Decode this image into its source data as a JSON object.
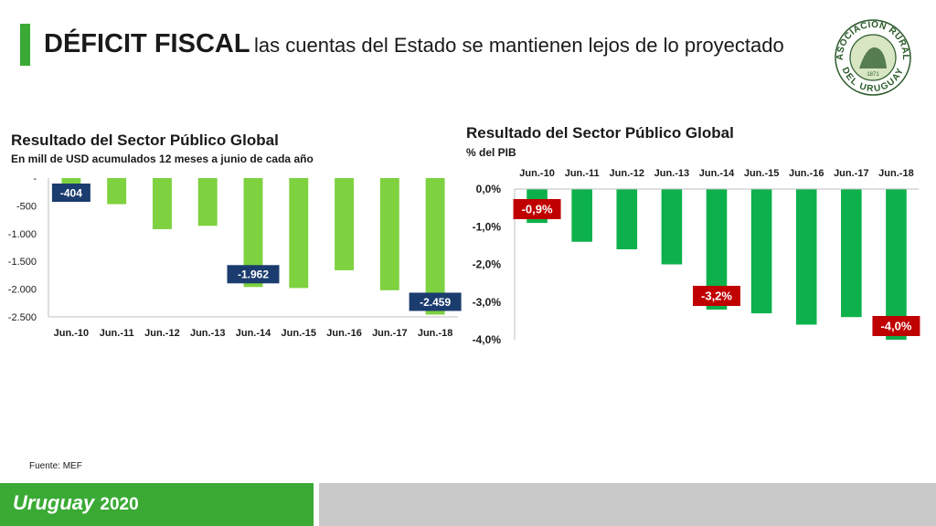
{
  "header": {
    "title_bold": "DÉFICIT FISCAL",
    "title_rest": "las cuentas del Estado se mantienen lejos de lo proyectado",
    "logo": {
      "name": "seal-logo",
      "text_top": "ASOCIACION RURAL",
      "text_bottom": "DEL URUGUAY",
      "year": "1871"
    }
  },
  "charts": {
    "left": {
      "title": "Resultado del Sector Público Global",
      "subtitle": "En mill de USD acumulados 12 meses a junio de cada año"
    },
    "right": {
      "title": "Resultado del Sector Público Global",
      "subtitle": "% del PIB"
    }
  },
  "chart_data": [
    {
      "type": "bar",
      "title": "Resultado del Sector Público Global",
      "subtitle": "En mill de USD acumulados 12 meses a junio de cada año",
      "categories": [
        "Jun.-10",
        "Jun.-11",
        "Jun.-12",
        "Jun.-13",
        "Jun.-14",
        "Jun.-15",
        "Jun.-16",
        "Jun.-17",
        "Jun.-18"
      ],
      "values": [
        -404,
        -470,
        -920,
        -860,
        -1962,
        -1980,
        -1660,
        -2020,
        -2459
      ],
      "ylim": [
        -2500,
        0
      ],
      "yticks": [
        0,
        -500,
        -1000,
        -1500,
        -2000,
        -2500
      ],
      "ytick_labels": [
        "-",
        "-500",
        "-1.000",
        "-1.500",
        "-2.000",
        "-2.500"
      ],
      "xaxis_position": "bottom",
      "bar_color": "#7ed13f",
      "data_labels": [
        {
          "index": 0,
          "text": "-404"
        },
        {
          "index": 4,
          "text": "-1.962"
        },
        {
          "index": 8,
          "text": "-2.459"
        }
      ],
      "label_color": "#1b3c6e"
    },
    {
      "type": "bar",
      "title": "Resultado del Sector Público Global",
      "subtitle": "% del PIB",
      "categories": [
        "Jun.-10",
        "Jun.-11",
        "Jun.-12",
        "Jun.-13",
        "Jun.-14",
        "Jun.-15",
        "Jun.-16",
        "Jun.-17",
        "Jun.-18"
      ],
      "values": [
        -0.9,
        -1.4,
        -1.6,
        -2.0,
        -3.2,
        -3.3,
        -3.6,
        -3.4,
        -4.0
      ],
      "ylim": [
        -4.0,
        0
      ],
      "yticks": [
        0,
        -1,
        -2,
        -3,
        -4
      ],
      "ytick_labels": [
        "0,0%",
        "-1,0%",
        "-2,0%",
        "-3,0%",
        "-4,0%"
      ],
      "xaxis_position": "top",
      "bar_color": "#0db14b",
      "data_labels": [
        {
          "index": 0,
          "text": "-0,9%"
        },
        {
          "index": 4,
          "text": "-3,2%"
        },
        {
          "index": 8,
          "text": "-4,0%"
        }
      ],
      "label_color": "#c00000"
    }
  ],
  "source": "Fuente: MEF",
  "footer": {
    "brand": "Uruguay",
    "year": "2020"
  }
}
